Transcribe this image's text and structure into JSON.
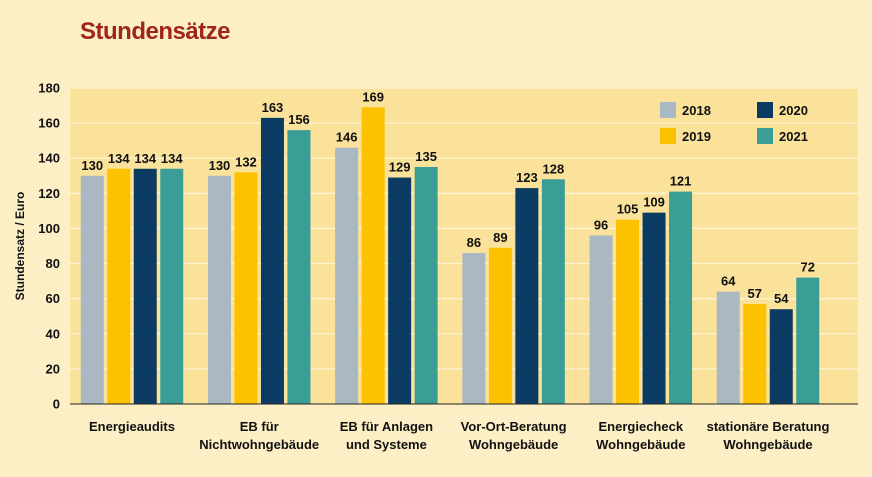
{
  "title": "Stundensätze",
  "colors": {
    "background": "#fcefc6",
    "plot_background": "#fbe29a",
    "grid": "#fff4d2",
    "title": "#a0251e",
    "series": [
      "#a9b8c2",
      "#fcc200",
      "#0b3b63",
      "#3a9d96"
    ]
  },
  "chart_data": {
    "type": "bar",
    "title": "Stundensätze",
    "xlabel": "",
    "ylabel": "Stundensatz / Euro",
    "ylim": [
      0,
      180
    ],
    "yticks": [
      0,
      20,
      40,
      60,
      80,
      100,
      120,
      140,
      160,
      180
    ],
    "grid": true,
    "legend_position": "top-right",
    "categories": [
      [
        "Energieaudits"
      ],
      [
        "EB für",
        "Nichtwohngebäude"
      ],
      [
        "EB für Anlagen",
        "und Systeme"
      ],
      [
        "Vor-Ort-Beratung",
        "Wohngebäude"
      ],
      [
        "Energiecheck",
        "Wohngebäude"
      ],
      [
        "stationäre Beratung",
        "Wohngebäude"
      ]
    ],
    "series": [
      {
        "name": "2018",
        "values": [
          130,
          130,
          146,
          86,
          96,
          64
        ]
      },
      {
        "name": "2019",
        "values": [
          134,
          132,
          169,
          89,
          105,
          57
        ]
      },
      {
        "name": "2020",
        "values": [
          134,
          163,
          129,
          123,
          109,
          54
        ]
      },
      {
        "name": "2021",
        "values": [
          134,
          156,
          135,
          128,
          121,
          72
        ]
      }
    ]
  }
}
